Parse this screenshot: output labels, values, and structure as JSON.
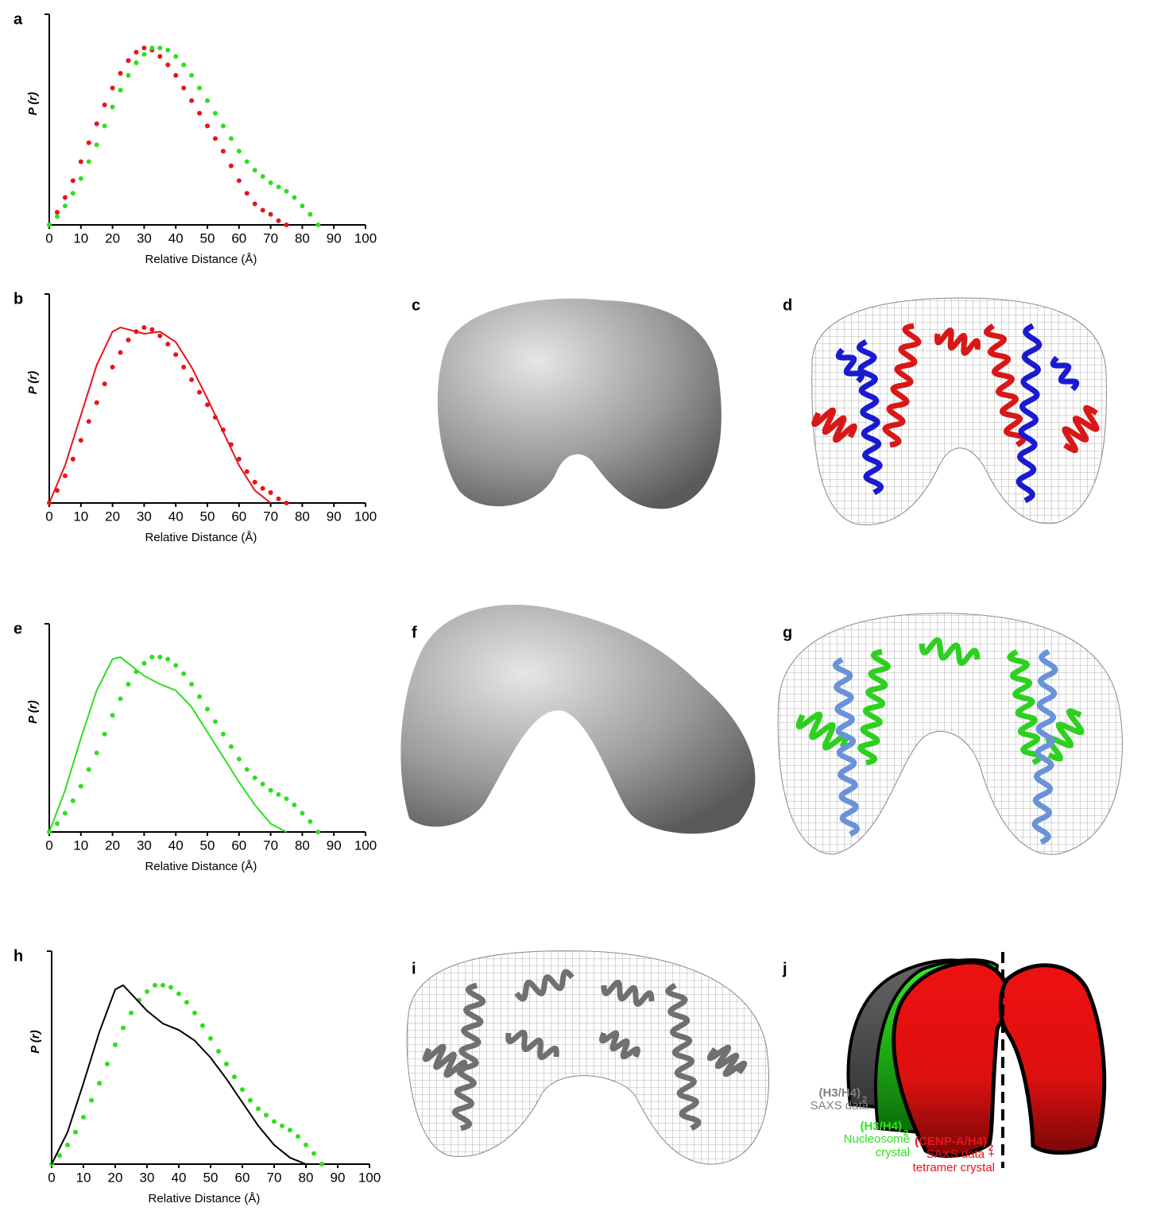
{
  "figure_panels": [
    "c",
    "d",
    "f",
    "g",
    "i",
    "j"
  ],
  "chart_data": [
    {
      "type": "line",
      "panel": "a",
      "xlabel": "Relative Distance (Å)",
      "ylabel": "P (r)",
      "xlim": [
        0,
        100
      ],
      "xticks": [
        0,
        10,
        20,
        30,
        40,
        50,
        60,
        70,
        80,
        90,
        100
      ],
      "ylim": [
        0,
        1
      ],
      "series": [
        {
          "style": "dots",
          "color": "#e8141a",
          "x": [
            0,
            2.5,
            5,
            7.5,
            10,
            12.5,
            15,
            17.5,
            20,
            22.5,
            25,
            27.5,
            30,
            32.5,
            35,
            37.5,
            40,
            42.5,
            45,
            47.5,
            50,
            52.5,
            55,
            57.5,
            60,
            62.5,
            65,
            67.5,
            70,
            72.5,
            75
          ],
          "values": [
            0,
            0.06,
            0.13,
            0.21,
            0.3,
            0.39,
            0.48,
            0.57,
            0.65,
            0.72,
            0.78,
            0.82,
            0.84,
            0.83,
            0.8,
            0.76,
            0.71,
            0.65,
            0.59,
            0.53,
            0.47,
            0.41,
            0.35,
            0.28,
            0.21,
            0.15,
            0.1,
            0.07,
            0.05,
            0.02,
            0
          ]
        },
        {
          "style": "dots",
          "color": "#2ee01e",
          "x": [
            0,
            2.5,
            5,
            7.5,
            10,
            12.5,
            15,
            17.5,
            20,
            22.5,
            25,
            27.5,
            30,
            32.5,
            35,
            37.5,
            40,
            42.5,
            45,
            47.5,
            50,
            52.5,
            55,
            57.5,
            60,
            62.5,
            65,
            67.5,
            70,
            72.5,
            75,
            77.5,
            80,
            82.5,
            85
          ],
          "values": [
            0,
            0.04,
            0.09,
            0.15,
            0.22,
            0.3,
            0.38,
            0.47,
            0.56,
            0.64,
            0.71,
            0.77,
            0.81,
            0.84,
            0.84,
            0.83,
            0.8,
            0.76,
            0.71,
            0.65,
            0.59,
            0.53,
            0.47,
            0.41,
            0.35,
            0.3,
            0.26,
            0.23,
            0.2,
            0.18,
            0.16,
            0.13,
            0.09,
            0.05,
            0
          ]
        }
      ]
    },
    {
      "type": "line",
      "panel": "b",
      "xlabel": "Relative Distance (Å)",
      "ylabel": "P (r)",
      "xlim": [
        0,
        100
      ],
      "xticks": [
        0,
        10,
        20,
        30,
        40,
        50,
        60,
        70,
        80,
        90,
        100
      ],
      "ylim": [
        0,
        1
      ],
      "series": [
        {
          "style": "dots",
          "color": "#e8141a",
          "x": [
            0,
            2.5,
            5,
            7.5,
            10,
            12.5,
            15,
            17.5,
            20,
            22.5,
            25,
            27.5,
            30,
            32.5,
            35,
            37.5,
            40,
            42.5,
            45,
            47.5,
            50,
            52.5,
            55,
            57.5,
            60,
            62.5,
            65,
            67.5,
            70,
            72.5,
            75
          ],
          "values": [
            0,
            0.06,
            0.13,
            0.21,
            0.3,
            0.39,
            0.48,
            0.57,
            0.65,
            0.72,
            0.78,
            0.82,
            0.84,
            0.83,
            0.8,
            0.76,
            0.71,
            0.65,
            0.59,
            0.53,
            0.47,
            0.41,
            0.35,
            0.28,
            0.21,
            0.15,
            0.1,
            0.07,
            0.05,
            0.02,
            0
          ]
        },
        {
          "style": "line",
          "color": "#e8141a",
          "x": [
            0,
            5,
            10,
            15,
            20,
            22.5,
            25,
            30,
            35,
            40,
            45,
            50,
            55,
            60,
            65,
            70
          ],
          "values": [
            0,
            0.18,
            0.42,
            0.66,
            0.82,
            0.84,
            0.83,
            0.81,
            0.82,
            0.77,
            0.65,
            0.5,
            0.34,
            0.18,
            0.06,
            0
          ]
        }
      ]
    },
    {
      "type": "line",
      "panel": "e",
      "xlabel": "Relative Distance (Å)",
      "ylabel": "P (r)",
      "xlim": [
        0,
        100
      ],
      "xticks": [
        0,
        10,
        20,
        30,
        40,
        50,
        60,
        70,
        80,
        90,
        100
      ],
      "ylim": [
        0,
        1
      ],
      "series": [
        {
          "style": "dots",
          "color": "#2ee01e",
          "x": [
            0,
            2.5,
            5,
            7.5,
            10,
            12.5,
            15,
            17.5,
            20,
            22.5,
            25,
            27.5,
            30,
            32.5,
            35,
            37.5,
            40,
            42.5,
            45,
            47.5,
            50,
            52.5,
            55,
            57.5,
            60,
            62.5,
            65,
            67.5,
            70,
            72.5,
            75,
            77.5,
            80,
            82.5,
            85
          ],
          "values": [
            0,
            0.04,
            0.09,
            0.15,
            0.22,
            0.3,
            0.38,
            0.47,
            0.56,
            0.64,
            0.71,
            0.77,
            0.81,
            0.84,
            0.84,
            0.83,
            0.8,
            0.76,
            0.71,
            0.65,
            0.59,
            0.53,
            0.47,
            0.41,
            0.35,
            0.3,
            0.26,
            0.23,
            0.2,
            0.18,
            0.16,
            0.13,
            0.09,
            0.05,
            0
          ]
        },
        {
          "style": "line",
          "color": "#2ee01e",
          "x": [
            0,
            5,
            10,
            15,
            20,
            22.5,
            25,
            30,
            35,
            40,
            45,
            50,
            55,
            60,
            65,
            70,
            75
          ],
          "values": [
            0,
            0.2,
            0.45,
            0.68,
            0.83,
            0.84,
            0.81,
            0.75,
            0.71,
            0.68,
            0.6,
            0.48,
            0.36,
            0.24,
            0.13,
            0.04,
            0
          ]
        }
      ]
    },
    {
      "type": "line",
      "panel": "h",
      "xlabel": "Relative Distance (Å)",
      "ylabel": "P (r)",
      "xlim": [
        0,
        100
      ],
      "xticks": [
        0,
        10,
        20,
        30,
        40,
        50,
        60,
        70,
        80,
        90,
        100
      ],
      "ylim": [
        0,
        1
      ],
      "series": [
        {
          "style": "dots",
          "color": "#2ee01e",
          "x": [
            0,
            2.5,
            5,
            7.5,
            10,
            12.5,
            15,
            17.5,
            20,
            22.5,
            25,
            27.5,
            30,
            32.5,
            35,
            37.5,
            40,
            42.5,
            45,
            47.5,
            50,
            52.5,
            55,
            57.5,
            60,
            62.5,
            65,
            67.5,
            70,
            72.5,
            75,
            77.5,
            80,
            82.5,
            85
          ],
          "values": [
            0,
            0.04,
            0.09,
            0.15,
            0.22,
            0.3,
            0.38,
            0.47,
            0.56,
            0.64,
            0.71,
            0.77,
            0.81,
            0.84,
            0.84,
            0.83,
            0.8,
            0.76,
            0.71,
            0.65,
            0.59,
            0.53,
            0.47,
            0.41,
            0.35,
            0.3,
            0.26,
            0.23,
            0.2,
            0.18,
            0.16,
            0.13,
            0.09,
            0.05,
            0
          ]
        },
        {
          "style": "line",
          "color": "#000000",
          "x": [
            0,
            5,
            10,
            15,
            20,
            22.5,
            25,
            30,
            35,
            40,
            45,
            50,
            55,
            60,
            65,
            70,
            75,
            80
          ],
          "values": [
            0,
            0.15,
            0.38,
            0.62,
            0.82,
            0.84,
            0.8,
            0.72,
            0.66,
            0.63,
            0.58,
            0.5,
            0.4,
            0.29,
            0.18,
            0.09,
            0.03,
            0
          ]
        }
      ]
    }
  ],
  "schematic": {
    "labels": [
      {
        "name": "(H3/H4)",
        "subscript": "2",
        "lines": [
          "SAXS data"
        ],
        "color": "#808080"
      },
      {
        "name": "(H3/H4)",
        "subscript": "2",
        "lines": [
          "Nucleosome",
          "crystal"
        ],
        "color": "#2ee01e"
      },
      {
        "name": "(CENP-A/H4)",
        "subscript": "2",
        "lines": [
          "SAXS data +",
          "tetramer crystal"
        ],
        "color": "#e8141a"
      }
    ]
  }
}
